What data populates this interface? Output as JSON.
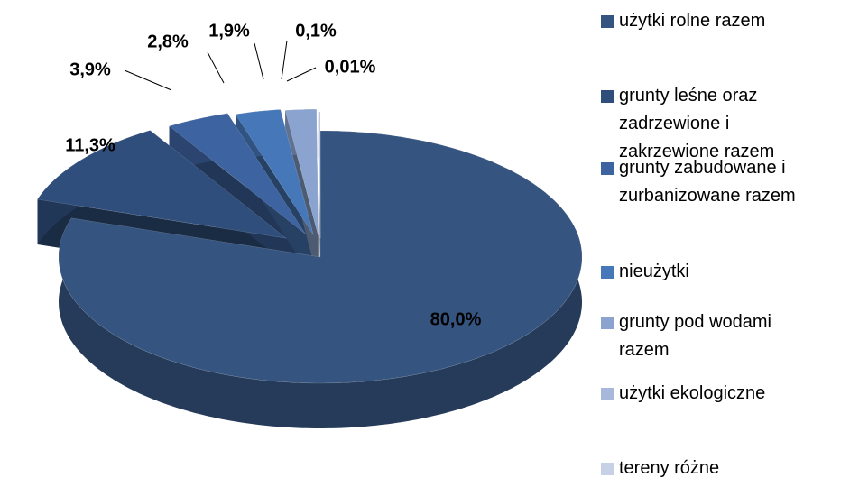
{
  "chart_data": {
    "type": "pie",
    "categories": [
      "użytki rolne razem",
      "grunty leśne oraz zadrzewione i zakrzewione razem",
      "grunty zabudowane i zurbanizowane razem",
      "nieużytki",
      "grunty pod wodami razem",
      "użytki ekologiczne",
      "tereny różne"
    ],
    "values": [
      80.0,
      11.3,
      3.9,
      2.8,
      1.9,
      0.1,
      0.01
    ],
    "value_labels": [
      "80,0%",
      "11,3%",
      "3,9%",
      "2,8%",
      "1,9%",
      "0,1%",
      "0,01%"
    ],
    "colors": [
      "#35547f",
      "#2f4e7c",
      "#3d63a0",
      "#4677b8",
      "#8aa3cf",
      "#a7b8da",
      "#c6d1e6"
    ],
    "legend": "right"
  }
}
